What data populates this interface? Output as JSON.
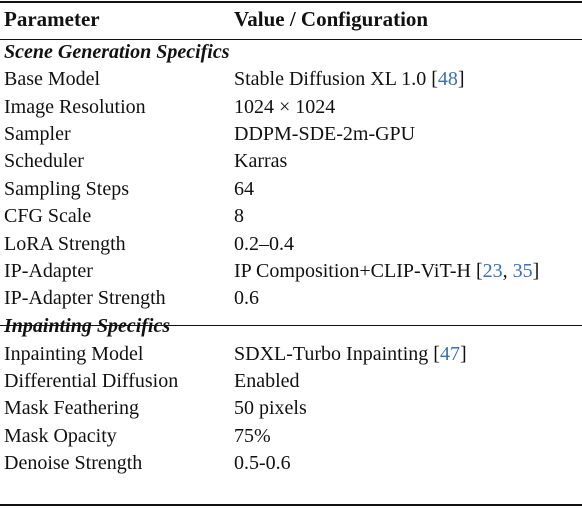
{
  "header": {
    "parameter": "Parameter",
    "value": "Value / Configuration"
  },
  "sections": [
    {
      "title": "Scene Generation Specifics",
      "rows": [
        {
          "parameter": "Base Model",
          "value": "Stable Diffusion XL 1.0 [",
          "citations": [
            "48"
          ],
          "suffix": "]"
        },
        {
          "parameter": "Image Resolution",
          "value": "1024 × 1024"
        },
        {
          "parameter": "Sampler",
          "value": "DDPM-SDE-2m-GPU"
        },
        {
          "parameter": "Scheduler",
          "value": "Karras"
        },
        {
          "parameter": "Sampling Steps",
          "value": "64"
        },
        {
          "parameter": "CFG Scale",
          "value": "8"
        },
        {
          "parameter": "LoRA Strength",
          "value": "0.2–0.4"
        },
        {
          "parameter": "IP-Adapter",
          "value": "IP Composition+CLIP-ViT-H [",
          "citations": [
            "23",
            "35"
          ],
          "suffix": "]"
        },
        {
          "parameter": "IP-Adapter Strength",
          "value": "0.6"
        }
      ]
    },
    {
      "title": "Inpainting Specifics",
      "rows": [
        {
          "parameter": "Inpainting Model",
          "value": "SDXL-Turbo Inpainting [",
          "citations": [
            "47"
          ],
          "suffix": "]"
        },
        {
          "parameter": "Differential Diffusion",
          "value": "Enabled"
        },
        {
          "parameter": "Mask Feathering",
          "value": "50 pixels"
        },
        {
          "parameter": "Mask Opacity",
          "value": "75%"
        },
        {
          "parameter": "Denoise Strength",
          "value": "0.5-0.6"
        }
      ]
    }
  ],
  "colors": {
    "text": "#111111",
    "citation": "#3a6fb5"
  }
}
